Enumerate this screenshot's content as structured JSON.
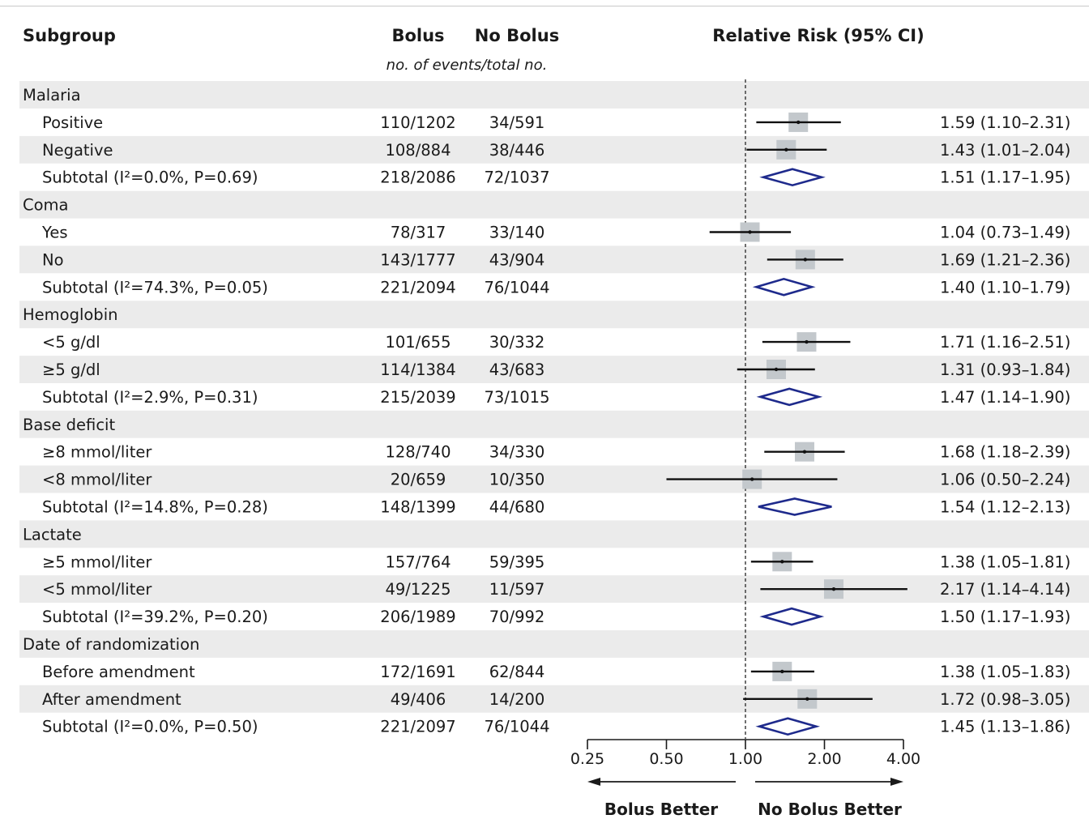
{
  "chart_data": {
    "type": "forest",
    "columns": {
      "subgroup": "Subgroup",
      "bolus": "Bolus",
      "no_bolus": "No Bolus",
      "events_note": "no. of events/total no.",
      "effect": "Relative Risk (95% CI)"
    },
    "rows": [
      {
        "kind": "header",
        "label": "Malaria"
      },
      {
        "kind": "item",
        "label": "Positive",
        "bolus": "110/1202",
        "no_bolus": "34/591",
        "rr": 1.59,
        "lo": 1.1,
        "hi": 2.31,
        "text": "1.59 (1.10–2.31)"
      },
      {
        "kind": "item",
        "label": "Negative",
        "bolus": "108/884",
        "no_bolus": "38/446",
        "rr": 1.43,
        "lo": 1.01,
        "hi": 2.04,
        "text": "1.43 (1.01–2.04)"
      },
      {
        "kind": "subtotal",
        "label": "Subtotal (I²=0.0%, P=0.69)",
        "bolus": "218/2086",
        "no_bolus": "72/1037",
        "rr": 1.51,
        "lo": 1.17,
        "hi": 1.95,
        "text": "1.51 (1.17–1.95)"
      },
      {
        "kind": "header",
        "label": "Coma"
      },
      {
        "kind": "item",
        "label": "Yes",
        "bolus": "78/317",
        "no_bolus": "33/140",
        "rr": 1.04,
        "lo": 0.73,
        "hi": 1.49,
        "text": "1.04 (0.73–1.49)"
      },
      {
        "kind": "item",
        "label": "No",
        "bolus": "143/1777",
        "no_bolus": "43/904",
        "rr": 1.69,
        "lo": 1.21,
        "hi": 2.36,
        "text": "1.69 (1.21–2.36)"
      },
      {
        "kind": "subtotal",
        "label": "Subtotal (I²=74.3%, P=0.05)",
        "bolus": "221/2094",
        "no_bolus": "76/1044",
        "rr": 1.4,
        "lo": 1.1,
        "hi": 1.79,
        "text": "1.40 (1.10–1.79)"
      },
      {
        "kind": "header",
        "label": "Hemoglobin"
      },
      {
        "kind": "item",
        "label": "<5 g/dl",
        "bolus": "101/655",
        "no_bolus": "30/332",
        "rr": 1.71,
        "lo": 1.16,
        "hi": 2.51,
        "text": "1.71 (1.16–2.51)"
      },
      {
        "kind": "item",
        "label": "≥5 g/dl",
        "bolus": "114/1384",
        "no_bolus": "43/683",
        "rr": 1.31,
        "lo": 0.93,
        "hi": 1.84,
        "text": "1.31 (0.93–1.84)"
      },
      {
        "kind": "subtotal",
        "label": "Subtotal (I²=2.9%, P=0.31)",
        "bolus": "215/2039",
        "no_bolus": "73/1015",
        "rr": 1.47,
        "lo": 1.14,
        "hi": 1.9,
        "text": "1.47 (1.14–1.90)"
      },
      {
        "kind": "header",
        "label": "Base deficit"
      },
      {
        "kind": "item",
        "label": "≥8 mmol/liter",
        "bolus": "128/740",
        "no_bolus": "34/330",
        "rr": 1.68,
        "lo": 1.18,
        "hi": 2.39,
        "text": "1.68 (1.18–2.39)"
      },
      {
        "kind": "item",
        "label": "<8 mmol/liter",
        "bolus": "20/659",
        "no_bolus": "10/350",
        "rr": 1.06,
        "lo": 0.5,
        "hi": 2.24,
        "text": "1.06 (0.50–2.24)"
      },
      {
        "kind": "subtotal",
        "label": "Subtotal (I²=14.8%, P=0.28)",
        "bolus": "148/1399",
        "no_bolus": "44/680",
        "rr": 1.54,
        "lo": 1.12,
        "hi": 2.13,
        "text": "1.54 (1.12–2.13)"
      },
      {
        "kind": "header",
        "label": "Lactate"
      },
      {
        "kind": "item",
        "label": "≥5 mmol/liter",
        "bolus": "157/764",
        "no_bolus": "59/395",
        "rr": 1.38,
        "lo": 1.05,
        "hi": 1.81,
        "text": "1.38 (1.05–1.81)"
      },
      {
        "kind": "item",
        "label": "<5 mmol/liter",
        "bolus": "49/1225",
        "no_bolus": "11/597",
        "rr": 2.17,
        "lo": 1.14,
        "hi": 4.14,
        "text": "2.17 (1.14–4.14)"
      },
      {
        "kind": "subtotal",
        "label": "Subtotal (I²=39.2%, P=0.20)",
        "bolus": "206/1989",
        "no_bolus": "70/992",
        "rr": 1.5,
        "lo": 1.17,
        "hi": 1.93,
        "text": "1.50 (1.17–1.93)"
      },
      {
        "kind": "header",
        "label": "Date of randomization"
      },
      {
        "kind": "item",
        "label": "Before amendment",
        "bolus": "172/1691",
        "no_bolus": "62/844",
        "rr": 1.38,
        "lo": 1.05,
        "hi": 1.83,
        "text": "1.38 (1.05–1.83)"
      },
      {
        "kind": "item",
        "label": "After amendment",
        "bolus": "49/406",
        "no_bolus": "14/200",
        "rr": 1.72,
        "lo": 0.98,
        "hi": 3.05,
        "text": "1.72 (0.98–3.05)"
      },
      {
        "kind": "subtotal",
        "label": "Subtotal (I²=0.0%, P=0.50)",
        "bolus": "221/2097",
        "no_bolus": "76/1044",
        "rr": 1.45,
        "lo": 1.13,
        "hi": 1.86,
        "text": "1.45 (1.13–1.86)"
      }
    ],
    "x_axis": {
      "scale": "log2",
      "ticks": [
        0.25,
        0.5,
        1.0,
        2.0,
        4.0
      ],
      "tick_labels": [
        "0.25",
        "0.50",
        "1.00",
        "2.00",
        "4.00"
      ],
      "reference": 1.0,
      "left_label": "Bolus Better",
      "right_label": "No Bolus Better"
    },
    "colors": {
      "stripe": "#ebebeb",
      "square": "#c3c8cc",
      "diamond": "#1e2a8c",
      "line": "#111111"
    }
  }
}
